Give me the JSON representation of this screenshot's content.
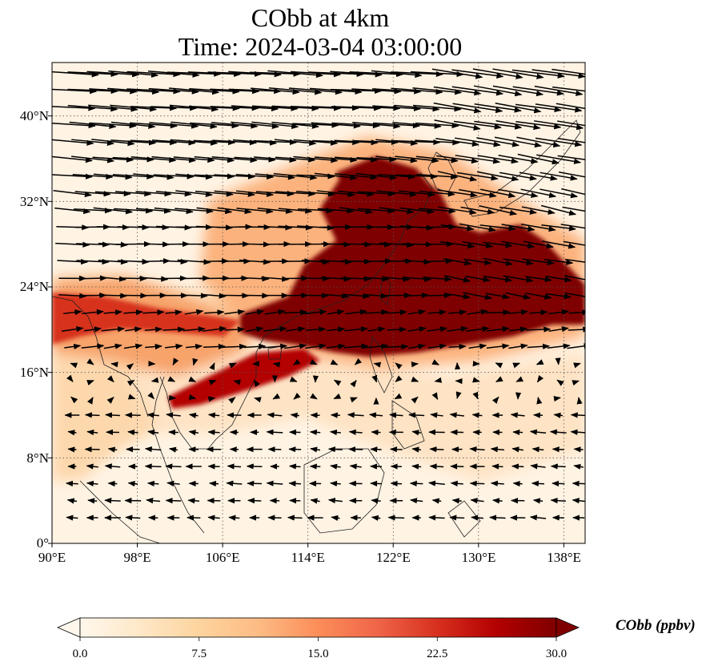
{
  "title": {
    "line1": "CObb at 4km",
    "line2": "Time: 2024-03-04 03:00:00"
  },
  "map": {
    "lon_range": [
      90,
      140
    ],
    "lat_range": [
      0,
      45
    ],
    "lat_ticks": [
      {
        "value": 0,
        "label": "0°"
      },
      {
        "value": 8,
        "label": "8°N"
      },
      {
        "value": 16,
        "label": "16°N"
      },
      {
        "value": 24,
        "label": "24°N"
      },
      {
        "value": 32,
        "label": "32°N"
      },
      {
        "value": 40,
        "label": "40°N"
      }
    ],
    "lon_ticks": [
      {
        "value": 90,
        "label": "90°E"
      },
      {
        "value": 98,
        "label": "98°E"
      },
      {
        "value": 106,
        "label": "106°E"
      },
      {
        "value": 114,
        "label": "114°E"
      },
      {
        "value": 122,
        "label": "122°E"
      },
      {
        "value": 130,
        "label": "130°E"
      },
      {
        "value": 138,
        "label": "138°E"
      }
    ],
    "gridlines": true,
    "field": "CObb",
    "plume_color": "#7f0000",
    "background_color": "#fff3e3"
  },
  "colorbar": {
    "label": "CObb (ppbv)",
    "min": 0,
    "max": 30,
    "ticks": [
      "0.0",
      "7.5",
      "15.0",
      "22.5",
      "30.0"
    ],
    "colors": [
      "#fff7ec",
      "#fee8c8",
      "#fdd49e",
      "#fdbb84",
      "#fc8d59",
      "#ef6548",
      "#d7301f",
      "#b30000",
      "#7f0000"
    ],
    "extend": "both"
  }
}
